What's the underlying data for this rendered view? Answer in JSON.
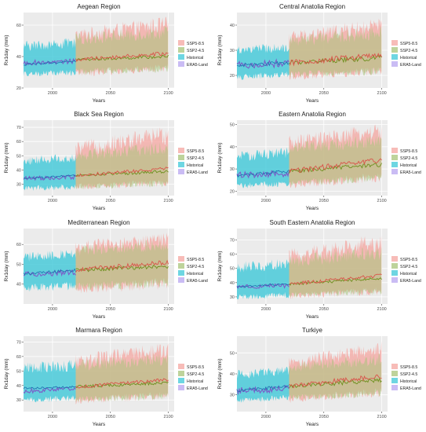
{
  "figure": {
    "legend_entries": [
      "SSP5-8.5",
      "SSP2-4.5",
      "Historical",
      "ERA5-Land"
    ],
    "colors": {
      "SSP5-8.5": "#f4a6a0",
      "SSP2-4.5": "#a8c47a",
      "Historical": "#3ec8d8",
      "ERA5-Land": "#b8a6f0",
      "panel_bg": "#ebebeb",
      "grid": "#ffffff"
    },
    "xlabel": "Years",
    "ylabel": "Rx1day (mm)"
  },
  "chart_data": [
    {
      "type": "area",
      "title": "Aegean Region",
      "xlabel": "Years",
      "ylabel": "Rx1day (mm)",
      "xlim": [
        1975,
        2105
      ],
      "xticks": [
        2000,
        2050,
        2100
      ],
      "ylim": [
        20,
        68
      ],
      "yticks": [
        20,
        40,
        60
      ],
      "series": [
        {
          "name": "Historical",
          "x": [
            1975,
            2020
          ],
          "mean": [
            35,
            37
          ],
          "band": [
            [
              27,
              50
            ],
            [
              28,
              52
            ]
          ]
        },
        {
          "name": "SSP2-4.5",
          "x": [
            2020,
            2100
          ],
          "mean": [
            38,
            40
          ],
          "band": [
            [
              28,
              55
            ],
            [
              30,
              60
            ]
          ]
        },
        {
          "name": "SSP5-8.5",
          "x": [
            2020,
            2100
          ],
          "mean": [
            38,
            42
          ],
          "band": [
            [
              27,
              58
            ],
            [
              30,
              66
            ]
          ]
        },
        {
          "name": "ERA5-Land",
          "x": [
            1975,
            2020
          ],
          "mean": [
            36,
            37
          ]
        }
      ],
      "legend": "right",
      "grid": true
    },
    {
      "type": "area",
      "title": "Central Anatolia Region",
      "xlabel": "Years",
      "ylabel": "Rx1day (mm)",
      "xlim": [
        1975,
        2105
      ],
      "xticks": [
        2000,
        2050,
        2100
      ],
      "ylim": [
        15,
        45
      ],
      "yticks": [
        20,
        30,
        40
      ],
      "series": [
        {
          "name": "Historical",
          "x": [
            1975,
            2020
          ],
          "mean": [
            24,
            25
          ],
          "band": [
            [
              18,
              32
            ],
            [
              19,
              33
            ]
          ]
        },
        {
          "name": "SSP2-4.5",
          "x": [
            2020,
            2100
          ],
          "mean": [
            25,
            27
          ],
          "band": [
            [
              19,
              36
            ],
            [
              20,
              40
            ]
          ]
        },
        {
          "name": "SSP5-8.5",
          "x": [
            2020,
            2100
          ],
          "mean": [
            25,
            28
          ],
          "band": [
            [
              18,
              38
            ],
            [
              20,
              43
            ]
          ]
        },
        {
          "name": "ERA5-Land",
          "x": [
            1975,
            2020
          ],
          "mean": [
            24,
            25
          ]
        }
      ],
      "legend": "right",
      "grid": true
    },
    {
      "type": "area",
      "title": "Black Sea Region",
      "xlabel": "Years",
      "ylabel": "Rx1day (mm)",
      "xlim": [
        1975,
        2105
      ],
      "xticks": [
        2000,
        2050,
        2100
      ],
      "ylim": [
        22,
        75
      ],
      "yticks": [
        30,
        40,
        50,
        60,
        70
      ],
      "series": [
        {
          "name": "Historical",
          "x": [
            1975,
            2020
          ],
          "mean": [
            34,
            36
          ],
          "band": [
            [
              25,
              50
            ],
            [
              26,
              52
            ]
          ]
        },
        {
          "name": "SSP2-4.5",
          "x": [
            2020,
            2100
          ],
          "mean": [
            36,
            39
          ],
          "band": [
            [
              26,
              55
            ],
            [
              28,
              60
            ]
          ]
        },
        {
          "name": "SSP5-8.5",
          "x": [
            2020,
            2100
          ],
          "mean": [
            36,
            41
          ],
          "band": [
            [
              26,
              60
            ],
            [
              28,
              72
            ]
          ]
        },
        {
          "name": "ERA5-Land",
          "x": [
            1975,
            2020
          ],
          "mean": [
            34,
            35
          ]
        }
      ],
      "legend": "right",
      "grid": true
    },
    {
      "type": "area",
      "title": "Eastern Anatolia Region",
      "xlabel": "Years",
      "ylabel": "Rx1day (mm)",
      "xlim": [
        1975,
        2105
      ],
      "xticks": [
        2000,
        2050,
        2100
      ],
      "ylim": [
        18,
        52
      ],
      "yticks": [
        20,
        30,
        40,
        50
      ],
      "series": [
        {
          "name": "Historical",
          "x": [
            1975,
            2020
          ],
          "mean": [
            27,
            29
          ],
          "band": [
            [
              21,
              38
            ],
            [
              22,
              40
            ]
          ]
        },
        {
          "name": "SSP2-4.5",
          "x": [
            2020,
            2100
          ],
          "mean": [
            29,
            32
          ],
          "band": [
            [
              22,
              42
            ],
            [
              24,
              46
            ]
          ]
        },
        {
          "name": "SSP5-8.5",
          "x": [
            2020,
            2100
          ],
          "mean": [
            29,
            34
          ],
          "band": [
            [
              21,
              45
            ],
            [
              24,
              51
            ]
          ]
        },
        {
          "name": "ERA5-Land",
          "x": [
            1975,
            2020
          ],
          "mean": [
            27,
            28
          ]
        }
      ],
      "legend": "right",
      "grid": true
    },
    {
      "type": "area",
      "title": "Mediterranean Region",
      "xlabel": "Years",
      "ylabel": "Rx1day (mm)",
      "xlim": [
        1975,
        2105
      ],
      "xticks": [
        2000,
        2050,
        2100
      ],
      "ylim": [
        30,
        68
      ],
      "yticks": [
        40,
        50,
        60
      ],
      "series": [
        {
          "name": "Historical",
          "x": [
            1975,
            2020
          ],
          "mean": [
            45,
            47
          ],
          "band": [
            [
              36,
              56
            ],
            [
              37,
              58
            ]
          ]
        },
        {
          "name": "SSP2-4.5",
          "x": [
            2020,
            2100
          ],
          "mean": [
            47,
            49
          ],
          "band": [
            [
              36,
              60
            ],
            [
              38,
              63
            ]
          ]
        },
        {
          "name": "SSP5-8.5",
          "x": [
            2020,
            2100
          ],
          "mean": [
            47,
            51
          ],
          "band": [
            [
              35,
              62
            ],
            [
              37,
              66
            ]
          ]
        },
        {
          "name": "ERA5-Land",
          "x": [
            1975,
            2020
          ],
          "mean": [
            45,
            46
          ]
        }
      ],
      "legend": "right",
      "grid": true
    },
    {
      "type": "area",
      "title": "South Eastern Anatolia Region",
      "xlabel": "Years",
      "ylabel": "Rx1day (mm)",
      "xlim": [
        1975,
        2105
      ],
      "xticks": [
        2000,
        2050,
        2100
      ],
      "ylim": [
        25,
        78
      ],
      "yticks": [
        30,
        40,
        50,
        60,
        70
      ],
      "series": [
        {
          "name": "Historical",
          "x": [
            1975,
            2020
          ],
          "mean": [
            37,
            39
          ],
          "band": [
            [
              28,
              55
            ],
            [
              29,
              57
            ]
          ]
        },
        {
          "name": "SSP2-4.5",
          "x": [
            2020,
            2100
          ],
          "mean": [
            39,
            43
          ],
          "band": [
            [
              29,
              60
            ],
            [
              31,
              66
            ]
          ]
        },
        {
          "name": "SSP5-8.5",
          "x": [
            2020,
            2100
          ],
          "mean": [
            39,
            45
          ],
          "band": [
            [
              28,
              64
            ],
            [
              31,
              75
            ]
          ]
        },
        {
          "name": "ERA5-Land",
          "x": [
            1975,
            2020
          ],
          "mean": [
            37,
            38
          ]
        }
      ],
      "legend": "right",
      "grid": true
    },
    {
      "type": "area",
      "title": "Marmara Region",
      "xlabel": "Years",
      "ylabel": "Rx1day (mm)",
      "xlim": [
        1975,
        2105
      ],
      "xticks": [
        2000,
        2050,
        2100
      ],
      "ylim": [
        22,
        74
      ],
      "yticks": [
        30,
        40,
        50,
        60,
        70
      ],
      "series": [
        {
          "name": "Historical",
          "x": [
            1975,
            2020
          ],
          "mean": [
            38,
            39
          ],
          "band": [
            [
              28,
              56
            ],
            [
              29,
              58
            ]
          ]
        },
        {
          "name": "SSP2-4.5",
          "x": [
            2020,
            2100
          ],
          "mean": [
            39,
            42
          ],
          "band": [
            [
              28,
              58
            ],
            [
              30,
              63
            ]
          ]
        },
        {
          "name": "SSP5-8.5",
          "x": [
            2020,
            2100
          ],
          "mean": [
            39,
            44
          ],
          "band": [
            [
              27,
              62
            ],
            [
              30,
              70
            ]
          ]
        },
        {
          "name": "ERA5-Land",
          "x": [
            1975,
            2020
          ],
          "mean": [
            36,
            38
          ]
        }
      ],
      "legend": "right",
      "grid": true
    },
    {
      "type": "area",
      "title": "Turkiye",
      "xlabel": "Years",
      "ylabel": "Rx1day (mm)",
      "xlim": [
        1975,
        2105
      ],
      "xticks": [
        2000,
        2050,
        2100
      ],
      "ylim": [
        22,
        58
      ],
      "yticks": [
        30,
        40,
        50
      ],
      "series": [
        {
          "name": "Historical",
          "x": [
            1975,
            2020
          ],
          "mean": [
            32,
            34
          ],
          "band": [
            [
              26,
              42
            ],
            [
              27,
              44
            ]
          ]
        },
        {
          "name": "SSP2-4.5",
          "x": [
            2020,
            2100
          ],
          "mean": [
            34,
            37
          ],
          "band": [
            [
              27,
              46
            ],
            [
              29,
              50
            ]
          ]
        },
        {
          "name": "SSP5-8.5",
          "x": [
            2020,
            2100
          ],
          "mean": [
            34,
            39
          ],
          "band": [
            [
              26,
              48
            ],
            [
              29,
              56
            ]
          ]
        },
        {
          "name": "ERA5-Land",
          "x": [
            1975,
            2020
          ],
          "mean": [
            32,
            33
          ]
        }
      ],
      "legend": "right",
      "grid": true
    }
  ]
}
